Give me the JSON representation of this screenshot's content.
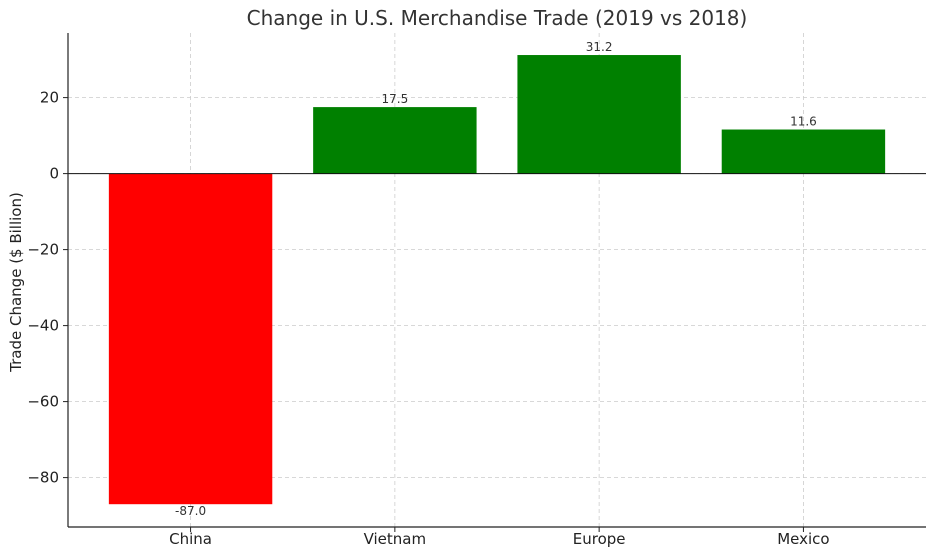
{
  "chart_data": {
    "type": "bar",
    "title": "Change in U.S. Merchandise Trade (2019 vs 2018)",
    "xlabel": "",
    "ylabel": "Trade Change ($ Billion)",
    "categories": [
      "China",
      "Vietnam",
      "Europe",
      "Mexico"
    ],
    "values": [
      -87.0,
      17.5,
      31.2,
      11.6
    ],
    "data_labels": [
      "-87.0",
      "17.5",
      "31.2",
      "11.6"
    ],
    "colors": [
      "#ff0000",
      "#008000",
      "#008000",
      "#008000"
    ],
    "ylim": [
      -93.0,
      37.0
    ],
    "yticks": [
      20,
      0,
      -20,
      -40,
      -60,
      -80
    ],
    "ytick_labels": [
      "20",
      "0",
      "−20",
      "−40",
      "−60",
      "−80"
    ],
    "grid": true,
    "zero_line": true
  }
}
